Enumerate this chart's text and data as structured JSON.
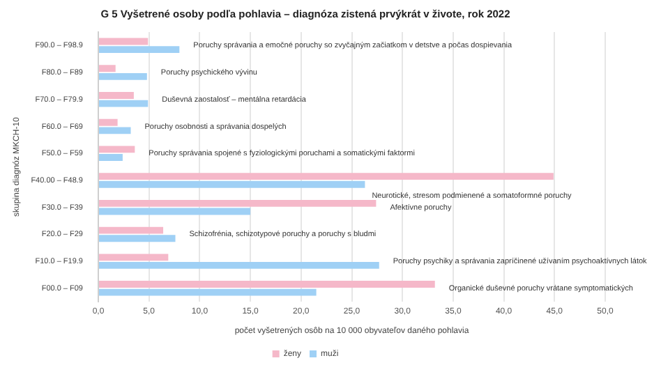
{
  "chart_data": {
    "type": "bar",
    "orientation": "horizontal",
    "title": "G 5 Vyšetrené osoby podľa pohlavia – diagnóza zistená prvýkrát v živote, rok 2022",
    "categories": [
      "F90.0 – F98.9",
      "F80.0 – F89",
      "F70.0 – F79.9",
      "F60.0 – F69",
      "F50.0 – F59",
      "F40.00 – F48.9",
      "F30.0 – F39",
      "F20.0 – F29",
      "F10.0 – F19.9",
      "F00.0 – F09"
    ],
    "series": [
      {
        "name": "ženy",
        "color": "#f5b8c9",
        "values": [
          4.9,
          1.7,
          3.5,
          1.9,
          3.6,
          44.9,
          27.4,
          6.4,
          6.9,
          33.2
        ]
      },
      {
        "name": "muži",
        "color": "#9fd0f5",
        "values": [
          8.0,
          4.8,
          4.9,
          3.2,
          2.4,
          26.3,
          15.0,
          7.6,
          27.7,
          21.5
        ]
      }
    ],
    "xlim": [
      0,
      50
    ],
    "xticks": [
      {
        "value": 0,
        "label": "0,0"
      },
      {
        "value": 5,
        "label": "5,0"
      },
      {
        "value": 10,
        "label": "10,0"
      },
      {
        "value": 15,
        "label": "15,0"
      },
      {
        "value": 20,
        "label": "20,0"
      },
      {
        "value": 25,
        "label": "25,0"
      },
      {
        "value": 30,
        "label": "30,0"
      },
      {
        "value": 35,
        "label": "35,0"
      },
      {
        "value": 40,
        "label": "40,0"
      },
      {
        "value": 45,
        "label": "45,0"
      },
      {
        "value": 50,
        "label": "50,0"
      }
    ],
    "xlabel": "počet vyšetrených osôb na 10 000 obyvateľov daného pohlavia",
    "ylabel": "skupina diagnóz MKCH-10",
    "grid": "x",
    "legend": "bottom",
    "annotations": [
      "Poruchy správania a emočné poruchy so zvyčajným začiatkom v detstve a počas dospievania",
      "Poruchy psychického vývinu",
      "Duševná zaostalosť – mentálna retardácia",
      "Poruchy osobnosti a správania dospelých",
      "Poruchy správania spojené s fyziologickými poruchami a somatickými faktormi",
      "Neurotické, stresom podmienené a somatoformné poruchy",
      "Afektívne poruchy",
      "Schizofrénia, schizotypové poruchy a poruchy s bludmi",
      "Poruchy psychiky a správania zapríčinené užívaním psychoaktívnych látok",
      "Organické duševné poruchy vrátane symptomatických"
    ]
  }
}
